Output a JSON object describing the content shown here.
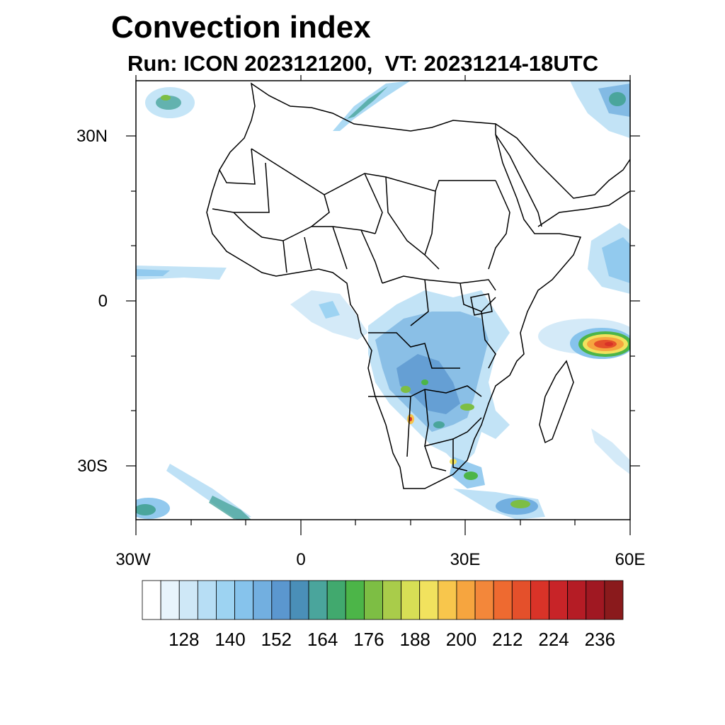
{
  "title": "Convection index",
  "subtitle": "Run: ICON 2023121200,  VT: 20231214-18UTC",
  "map": {
    "region": "Africa",
    "lon_range": [
      -30,
      60
    ],
    "lat_range": [
      -40,
      40
    ],
    "y_tick_labels": [
      {
        "label": "30N",
        "lat": 30
      },
      {
        "label": "0",
        "lat": 0
      },
      {
        "label": "30S",
        "lat": -30
      }
    ],
    "x_tick_labels": [
      {
        "label": "30W",
        "lon": -30
      },
      {
        "label": "0",
        "lon": 0
      },
      {
        "label": "30E",
        "lon": 30
      },
      {
        "label": "60E",
        "lon": 60
      }
    ]
  },
  "colorbar": {
    "colors": [
      "#ffffff",
      "#e8f4fc",
      "#cfe8f7",
      "#b7def5",
      "#9dd3f2",
      "#86c3ec",
      "#72afe0",
      "#5b97cf",
      "#4a8fb8",
      "#4aa59c",
      "#41a96e",
      "#4cb548",
      "#7dbe44",
      "#a9cc4a",
      "#d7df55",
      "#f1e25e",
      "#f8c64c",
      "#f6a53f",
      "#f3873a",
      "#ee6a30",
      "#e4502b",
      "#d93328",
      "#c82428",
      "#b51c25",
      "#a01822",
      "#8a1a1c"
    ],
    "tick_labels": [
      "128",
      "140",
      "152",
      "164",
      "176",
      "188",
      "200",
      "212",
      "224",
      "236"
    ]
  }
}
